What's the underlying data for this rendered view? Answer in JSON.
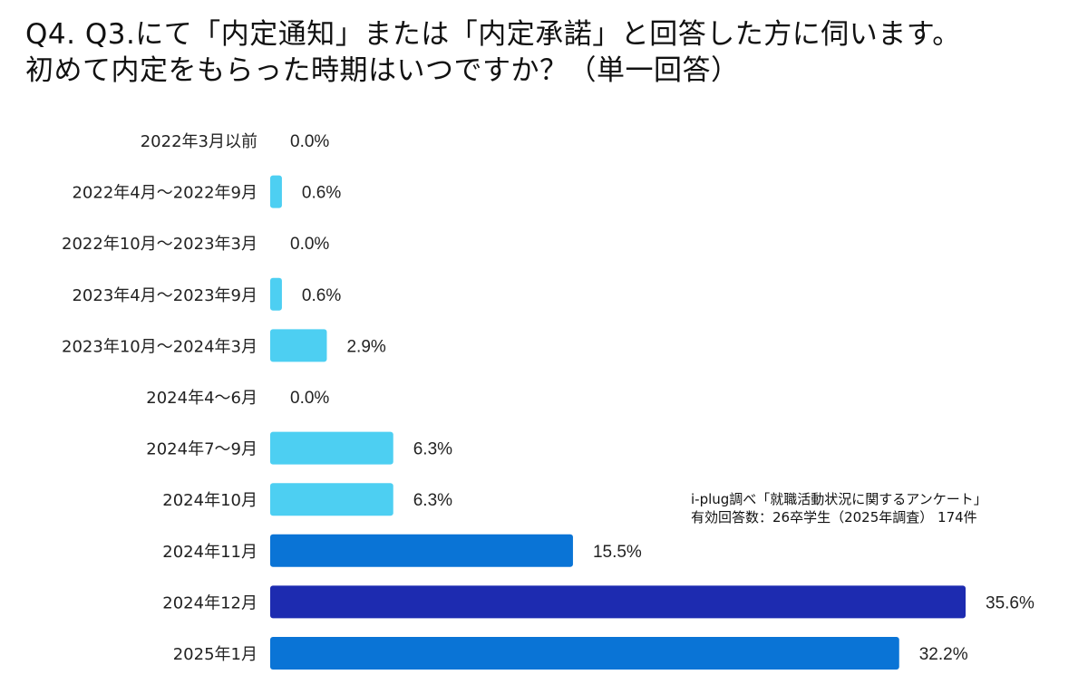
{
  "title": {
    "line1": "Q4. Q3.にて「内定通知」または「内定承諾」と回答した方に伺います。",
    "line2": "初めて内定をもらった時期はいつですか？（単一回答）"
  },
  "source": {
    "line1": "i-plug調べ「就職活動状況に関するアンケート」",
    "line2": "有効回答数：26卒学生（2025年調査） 174件"
  },
  "colors": {
    "light": "#4dcff2",
    "medium": "#0a74d6",
    "dark": "#1d2bb0"
  },
  "chart_data": {
    "type": "bar",
    "orientation": "horizontal",
    "categories": [
      "2022年3月以前",
      "2022年4月〜2022年9月",
      "2022年10月〜2023年3月",
      "2023年4月〜2023年9月",
      "2023年10月〜2024年3月",
      "2024年4〜6月",
      "2024年7〜9月",
      "2024年10月",
      "2024年11月",
      "2024年12月",
      "2025年1月"
    ],
    "values": [
      0.0,
      0.6,
      0.0,
      0.6,
      2.9,
      0.0,
      6.3,
      6.3,
      15.5,
      35.6,
      32.2
    ],
    "value_labels": [
      "0.0%",
      "0.6%",
      "0.0%",
      "0.6%",
      "2.9%",
      "0.0%",
      "6.3%",
      "6.3%",
      "15.5%",
      "35.6%",
      "32.2%"
    ],
    "bar_colors": [
      "light",
      "light",
      "light",
      "light",
      "light",
      "light",
      "light",
      "light",
      "medium",
      "dark",
      "medium"
    ],
    "xlim": [
      0,
      35.6
    ],
    "grid": false,
    "legend": "none"
  }
}
